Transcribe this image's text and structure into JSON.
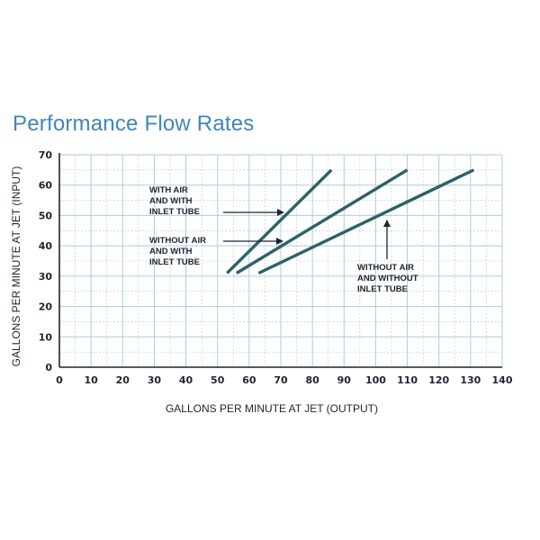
{
  "chart_data": {
    "type": "line",
    "title": "Performance Flow Rates",
    "xlabel": "GALLONS PER MINUTE AT JET (OUTPUT)",
    "ylabel": "GALLONS PER MINUTE AT JET (INPUT)",
    "xlim": [
      0,
      140
    ],
    "ylim": [
      0,
      70
    ],
    "xticks": [
      0,
      10,
      20,
      30,
      40,
      50,
      60,
      70,
      80,
      90,
      100,
      110,
      120,
      130,
      140
    ],
    "yticks": [
      0,
      10,
      20,
      30,
      40,
      50,
      60,
      70
    ],
    "grid": true,
    "series": [
      {
        "name": "WITH AIR AND WITH INLET TUBE",
        "x": [
          53,
          86
        ],
        "y": [
          31,
          65
        ]
      },
      {
        "name": "WITHOUT AIR AND WITH INLET TUBE",
        "x": [
          56,
          110
        ],
        "y": [
          31,
          65
        ]
      },
      {
        "name": "WITHOUT AIR AND WITHOUT INLET TUBE",
        "x": [
          63,
          131
        ],
        "y": [
          31,
          65
        ]
      }
    ],
    "annotations": [
      {
        "lines": [
          "WITH AIR",
          "AND WITH",
          "INLET TUBE"
        ],
        "target_series": 0
      },
      {
        "lines": [
          "WITHOUT AIR",
          "AND WITH",
          "INLET TUBE"
        ],
        "target_series": 1
      },
      {
        "lines": [
          "WITHOUT AIR",
          "AND WITHOUT",
          "INLET TUBE"
        ],
        "target_series": 2
      }
    ],
    "colors": {
      "line": "#2e6168",
      "grid": "#aecbe2",
      "title": "#3f86b8",
      "text": "#1d2530"
    }
  }
}
